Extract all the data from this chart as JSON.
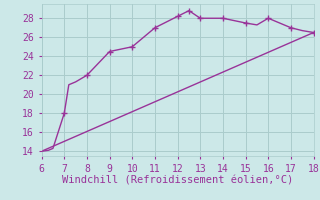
{
  "curve_x": [
    6,
    6.3,
    6.5,
    7,
    7.2,
    7.5,
    8,
    9,
    10,
    11,
    12,
    12.5,
    13,
    14,
    15,
    15.5,
    16,
    17,
    17.5,
    18
  ],
  "curve_y": [
    14,
    14.1,
    14.3,
    18,
    21,
    21.3,
    22,
    24.5,
    25,
    27,
    28.2,
    28.8,
    28,
    28,
    27.5,
    27.3,
    28,
    27,
    26.7,
    26.5
  ],
  "line_x": [
    6,
    18
  ],
  "line_y": [
    14,
    26.5
  ],
  "markers_x": [
    7,
    8,
    9,
    10,
    11,
    12,
    12.5,
    13,
    14,
    15,
    16,
    17,
    18
  ],
  "markers_y": [
    18,
    22,
    24.5,
    25,
    27,
    28.2,
    28.8,
    28,
    28,
    27.5,
    28,
    27,
    26.5
  ],
  "color": "#993399",
  "bg_color": "#cce8e8",
  "grid_color": "#aacccc",
  "xlabel": "Windchill (Refroidissement éolien,°C)",
  "xlabel_fontsize": 7.5,
  "xlim": [
    6,
    18
  ],
  "ylim": [
    13.5,
    29.5
  ],
  "xticks": [
    6,
    7,
    8,
    9,
    10,
    11,
    12,
    13,
    14,
    15,
    16,
    17,
    18
  ],
  "yticks": [
    14,
    16,
    18,
    20,
    22,
    24,
    26,
    28
  ],
  "tick_fontsize": 7,
  "linewidth": 1.0,
  "markersize": 4,
  "marker_ew": 1.0
}
